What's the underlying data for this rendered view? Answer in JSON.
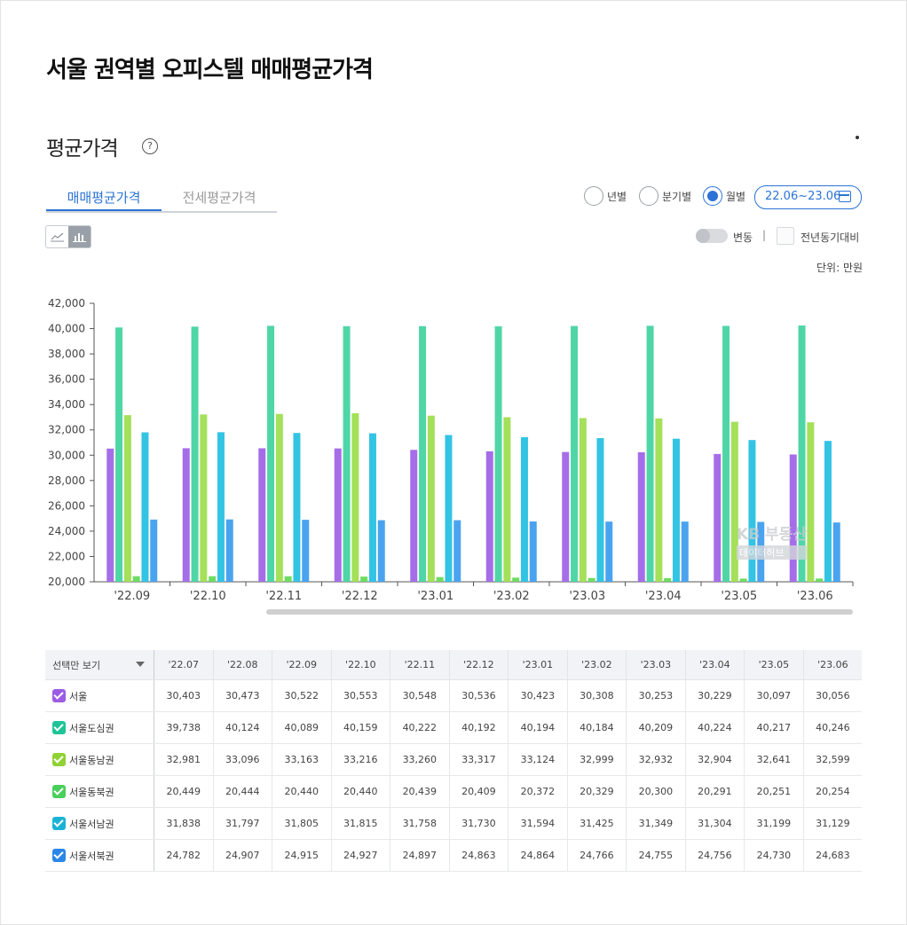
{
  "page": {
    "title": "서울 권역별 오피스텔 매매평균가격"
  },
  "section": {
    "title": "평균가격",
    "help_glyph": "?"
  },
  "tabs": [
    {
      "label": "매매평균가격",
      "active": true
    },
    {
      "label": "전세평균가격",
      "active": false
    }
  ],
  "period_options": [
    {
      "label": "년별",
      "selected": false
    },
    {
      "label": "분기별",
      "selected": false
    },
    {
      "label": "월별",
      "selected": true
    }
  ],
  "date_range": "22.06~23.06",
  "controls": {
    "change_label": "변동",
    "separator": "|",
    "yoy_label": "전년동기대비",
    "unit_label": "단위: 만원"
  },
  "watermark": {
    "line1": "KB 부동산",
    "line2": "데이터허브"
  },
  "colors": {
    "accent": "#2b73d6",
    "series": [
      "#a56ee8",
      "#4fd6a6",
      "#a4e05a",
      "#6edc62",
      "#33c4e4",
      "#4aa3ef"
    ],
    "checkbox": [
      "#9c5ce6",
      "#1ec497",
      "#8fd233",
      "#49cf5b",
      "#1ab3d6",
      "#2b86e8"
    ]
  },
  "table": {
    "header_label": "선택만 보기",
    "months": [
      "'22.07",
      "'22.08",
      "'22.09",
      "'22.10",
      "'22.11",
      "'22.12",
      "'23.01",
      "'23.02",
      "'23.03",
      "'23.04",
      "'23.05",
      "'23.06"
    ],
    "rows": [
      {
        "name": "서울",
        "values": [
          "30,403",
          "30,473",
          "30,522",
          "30,553",
          "30,548",
          "30,536",
          "30,423",
          "30,308",
          "30,253",
          "30,229",
          "30,097",
          "30,056"
        ]
      },
      {
        "name": "서울도심권",
        "values": [
          "39,738",
          "40,124",
          "40,089",
          "40,159",
          "40,222",
          "40,192",
          "40,194",
          "40,184",
          "40,209",
          "40,224",
          "40,217",
          "40,246"
        ]
      },
      {
        "name": "서울동남권",
        "values": [
          "32,981",
          "33,096",
          "33,163",
          "33,216",
          "33,260",
          "33,317",
          "33,124",
          "32,999",
          "32,932",
          "32,904",
          "32,641",
          "32,599"
        ]
      },
      {
        "name": "서울동북권",
        "values": [
          "20,449",
          "20,444",
          "20,440",
          "20,440",
          "20,439",
          "20,409",
          "20,372",
          "20,329",
          "20,300",
          "20,291",
          "20,251",
          "20,254"
        ]
      },
      {
        "name": "서울서남권",
        "values": [
          "31,838",
          "31,797",
          "31,805",
          "31,815",
          "31,758",
          "31,730",
          "31,594",
          "31,425",
          "31,349",
          "31,304",
          "31,199",
          "31,129"
        ]
      },
      {
        "name": "서울서북권",
        "values": [
          "24,782",
          "24,907",
          "24,915",
          "24,927",
          "24,897",
          "24,863",
          "24,864",
          "24,766",
          "24,755",
          "24,756",
          "24,730",
          "24,683"
        ]
      }
    ]
  },
  "chart_data": {
    "type": "bar",
    "categories": [
      "'22.09",
      "'22.10",
      "'22.11",
      "'22.12",
      "'23.01",
      "'23.02",
      "'23.03",
      "'23.04",
      "'23.05",
      "'23.06"
    ],
    "ylim": [
      20000,
      42000
    ],
    "yticks": [
      "20,000",
      "22,000",
      "24,000",
      "26,000",
      "28,000",
      "30,000",
      "32,000",
      "34,000",
      "36,000",
      "38,000",
      "40,000",
      "42,000"
    ],
    "ytick_values": [
      20000,
      22000,
      24000,
      26000,
      28000,
      30000,
      32000,
      34000,
      36000,
      38000,
      40000,
      42000
    ],
    "series": [
      {
        "name": "서울",
        "values": [
          30522,
          30553,
          30548,
          30536,
          30423,
          30308,
          30253,
          30229,
          30097,
          30056
        ]
      },
      {
        "name": "서울도심권",
        "values": [
          40089,
          40159,
          40222,
          40192,
          40194,
          40184,
          40209,
          40224,
          40217,
          40246
        ]
      },
      {
        "name": "서울동남권",
        "values": [
          33163,
          33216,
          33260,
          33317,
          33124,
          32999,
          32932,
          32904,
          32641,
          32599
        ]
      },
      {
        "name": "서울동북권",
        "values": [
          20440,
          20440,
          20439,
          20409,
          20372,
          20329,
          20300,
          20291,
          20251,
          20254
        ]
      },
      {
        "name": "서울서남권",
        "values": [
          31805,
          31815,
          31758,
          31730,
          31594,
          31425,
          31349,
          31304,
          31199,
          31129
        ]
      },
      {
        "name": "서울서북권",
        "values": [
          24915,
          24927,
          24897,
          24863,
          24864,
          24766,
          24755,
          24756,
          24730,
          24683
        ]
      }
    ],
    "grid": false,
    "legend": "none"
  }
}
